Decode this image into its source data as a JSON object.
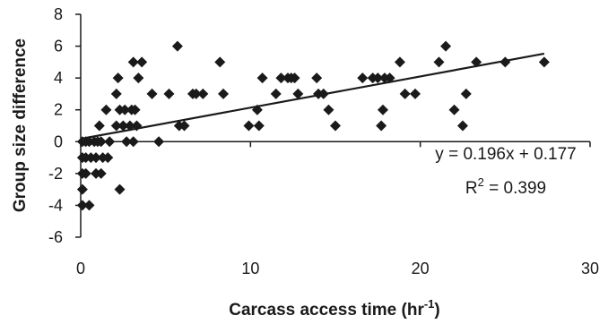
{
  "chart_data": {
    "type": "scatter",
    "xlabel": "Carcass access time (hr",
    "xlabel_sup": "-1",
    "xlabel_close": ")",
    "ylabel": "Group size difference",
    "xlim": [
      0,
      30
    ],
    "ylim": [
      -6,
      8
    ],
    "x_ticks": [
      0,
      10,
      20,
      30
    ],
    "y_ticks": [
      -6,
      -4,
      -2,
      0,
      2,
      4,
      6,
      8
    ],
    "grid": false,
    "marker": "diamond",
    "marker_color": "#1a1a1a",
    "equation": "y = 0.196x + 0.177",
    "r2_prefix": "R",
    "r2_sup": "2",
    "r2_value": " = 0.399",
    "trendline": {
      "slope": 0.196,
      "intercept": 0.177,
      "x_range": [
        0,
        27.3
      ]
    },
    "points": [
      {
        "x": 0.1,
        "y": 0
      },
      {
        "x": 0.1,
        "y": -1
      },
      {
        "x": 0.1,
        "y": -2
      },
      {
        "x": 0.1,
        "y": -3
      },
      {
        "x": 0.1,
        "y": -4
      },
      {
        "x": 0.3,
        "y": 0
      },
      {
        "x": 0.3,
        "y": -1
      },
      {
        "x": 0.3,
        "y": -2
      },
      {
        "x": 0.5,
        "y": -4
      },
      {
        "x": 0.5,
        "y": 0
      },
      {
        "x": 0.6,
        "y": -1
      },
      {
        "x": 0.8,
        "y": 0
      },
      {
        "x": 0.9,
        "y": -1
      },
      {
        "x": 0.9,
        "y": -2
      },
      {
        "x": 1.0,
        "y": 0
      },
      {
        "x": 1.1,
        "y": 1
      },
      {
        "x": 1.2,
        "y": 0
      },
      {
        "x": 1.2,
        "y": -2
      },
      {
        "x": 1.3,
        "y": -1
      },
      {
        "x": 1.5,
        "y": 2
      },
      {
        "x": 1.6,
        "y": -1
      },
      {
        "x": 1.7,
        "y": 0
      },
      {
        "x": 2.1,
        "y": 1
      },
      {
        "x": 2.1,
        "y": 3
      },
      {
        "x": 2.2,
        "y": 4
      },
      {
        "x": 2.3,
        "y": 2
      },
      {
        "x": 2.3,
        "y": -3
      },
      {
        "x": 2.5,
        "y": 1
      },
      {
        "x": 2.6,
        "y": 2
      },
      {
        "x": 2.7,
        "y": 0
      },
      {
        "x": 2.9,
        "y": 1
      },
      {
        "x": 3.0,
        "y": 2
      },
      {
        "x": 3.1,
        "y": 5
      },
      {
        "x": 3.1,
        "y": 0
      },
      {
        "x": 3.2,
        "y": 2
      },
      {
        "x": 3.3,
        "y": 1
      },
      {
        "x": 3.4,
        "y": 4
      },
      {
        "x": 3.6,
        "y": 5
      },
      {
        "x": 4.2,
        "y": 3
      },
      {
        "x": 4.6,
        "y": 0
      },
      {
        "x": 5.2,
        "y": 3
      },
      {
        "x": 5.7,
        "y": 6
      },
      {
        "x": 5.8,
        "y": 1
      },
      {
        "x": 6.1,
        "y": 1
      },
      {
        "x": 6.6,
        "y": 3
      },
      {
        "x": 6.8,
        "y": 3
      },
      {
        "x": 7.2,
        "y": 3
      },
      {
        "x": 8.2,
        "y": 5
      },
      {
        "x": 8.4,
        "y": 3
      },
      {
        "x": 9.9,
        "y": 1
      },
      {
        "x": 10.4,
        "y": 2
      },
      {
        "x": 10.5,
        "y": 1
      },
      {
        "x": 10.7,
        "y": 4
      },
      {
        "x": 11.5,
        "y": 3
      },
      {
        "x": 11.8,
        "y": 4
      },
      {
        "x": 12.2,
        "y": 4
      },
      {
        "x": 12.4,
        "y": 4
      },
      {
        "x": 12.6,
        "y": 4
      },
      {
        "x": 12.8,
        "y": 3
      },
      {
        "x": 13.9,
        "y": 4
      },
      {
        "x": 14.0,
        "y": 3
      },
      {
        "x": 14.3,
        "y": 3
      },
      {
        "x": 14.6,
        "y": 2
      },
      {
        "x": 15.0,
        "y": 1
      },
      {
        "x": 16.6,
        "y": 4
      },
      {
        "x": 17.2,
        "y": 4
      },
      {
        "x": 17.5,
        "y": 4
      },
      {
        "x": 17.7,
        "y": 1
      },
      {
        "x": 17.8,
        "y": 2
      },
      {
        "x": 17.9,
        "y": 4
      },
      {
        "x": 18.2,
        "y": 4
      },
      {
        "x": 18.8,
        "y": 5
      },
      {
        "x": 19.1,
        "y": 3
      },
      {
        "x": 19.7,
        "y": 3
      },
      {
        "x": 21.1,
        "y": 5
      },
      {
        "x": 21.5,
        "y": 6
      },
      {
        "x": 22.0,
        "y": 2
      },
      {
        "x": 22.5,
        "y": 1
      },
      {
        "x": 22.7,
        "y": 3
      },
      {
        "x": 23.3,
        "y": 5
      },
      {
        "x": 25.0,
        "y": 5
      },
      {
        "x": 27.3,
        "y": 5
      }
    ]
  }
}
